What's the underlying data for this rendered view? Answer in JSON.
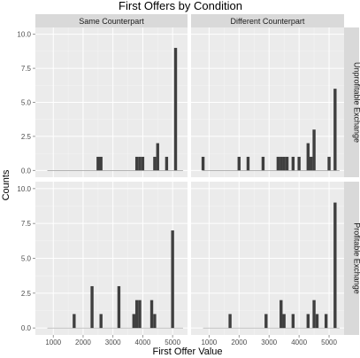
{
  "chart_data": {
    "type": "bar",
    "title": "First Offers by Condition",
    "xlabel": "First Offer Value",
    "ylabel": "Counts",
    "xlim": [
      400,
      5500
    ],
    "ylim": [
      -0.5,
      10.5
    ],
    "x_ticks": [
      1000,
      2000,
      3000,
      4000,
      5000
    ],
    "y_ticks": [
      0.0,
      2.5,
      5.0,
      7.5,
      10.0
    ],
    "x_tick_labels": [
      "1000",
      "2000",
      "3000",
      "4000",
      "5000"
    ],
    "y_tick_labels": [
      "0.0",
      "2.5",
      "5.0",
      "7.5",
      "10.0"
    ],
    "column_facets": [
      "Same Counterpart",
      "Different Counterpart"
    ],
    "row_facets": [
      "Unprofitable Exchange",
      "Profitable Exchange"
    ],
    "grid": true,
    "colors": {
      "bar": "#3f3f3f",
      "panel": "#ebebeb",
      "grid_major": "#ffffff",
      "grid_minor": "#f5f5f5",
      "strip": "#d9d9d9"
    },
    "panels": [
      {
        "column": "Same Counterpart",
        "row": "Unprofitable Exchange",
        "bars": [
          {
            "x": 2500,
            "y": 1
          },
          {
            "x": 2600,
            "y": 1
          },
          {
            "x": 3800,
            "y": 1
          },
          {
            "x": 3900,
            "y": 1
          },
          {
            "x": 4000,
            "y": 1
          },
          {
            "x": 4400,
            "y": 1
          },
          {
            "x": 4500,
            "y": 2
          },
          {
            "x": 4800,
            "y": 1
          },
          {
            "x": 5100,
            "y": 9
          }
        ]
      },
      {
        "column": "Different Counterpart",
        "row": "Unprofitable Exchange",
        "bars": [
          {
            "x": 800,
            "y": 1
          },
          {
            "x": 2000,
            "y": 1
          },
          {
            "x": 2300,
            "y": 1
          },
          {
            "x": 2800,
            "y": 1
          },
          {
            "x": 3300,
            "y": 1
          },
          {
            "x": 3400,
            "y": 1
          },
          {
            "x": 3500,
            "y": 1
          },
          {
            "x": 3600,
            "y": 1
          },
          {
            "x": 3800,
            "y": 1
          },
          {
            "x": 4000,
            "y": 1
          },
          {
            "x": 4300,
            "y": 2
          },
          {
            "x": 4400,
            "y": 1
          },
          {
            "x": 4500,
            "y": 3
          },
          {
            "x": 5000,
            "y": 1
          },
          {
            "x": 5200,
            "y": 6
          }
        ]
      },
      {
        "column": "Same Counterpart",
        "row": "Profitable Exchange",
        "bars": [
          {
            "x": 1700,
            "y": 1
          },
          {
            "x": 2300,
            "y": 3
          },
          {
            "x": 2600,
            "y": 1
          },
          {
            "x": 3200,
            "y": 3
          },
          {
            "x": 3700,
            "y": 1
          },
          {
            "x": 3800,
            "y": 2
          },
          {
            "x": 3900,
            "y": 2
          },
          {
            "x": 4300,
            "y": 2
          },
          {
            "x": 4400,
            "y": 1
          },
          {
            "x": 5000,
            "y": 7
          }
        ]
      },
      {
        "column": "Different Counterpart",
        "row": "Profitable Exchange",
        "bars": [
          {
            "x": 1700,
            "y": 1
          },
          {
            "x": 2900,
            "y": 1
          },
          {
            "x": 3400,
            "y": 2
          },
          {
            "x": 3500,
            "y": 1
          },
          {
            "x": 3800,
            "y": 1
          },
          {
            "x": 4300,
            "y": 1
          },
          {
            "x": 4500,
            "y": 2
          },
          {
            "x": 4600,
            "y": 1
          },
          {
            "x": 4900,
            "y": 1
          },
          {
            "x": 5200,
            "y": 9
          }
        ]
      }
    ]
  }
}
